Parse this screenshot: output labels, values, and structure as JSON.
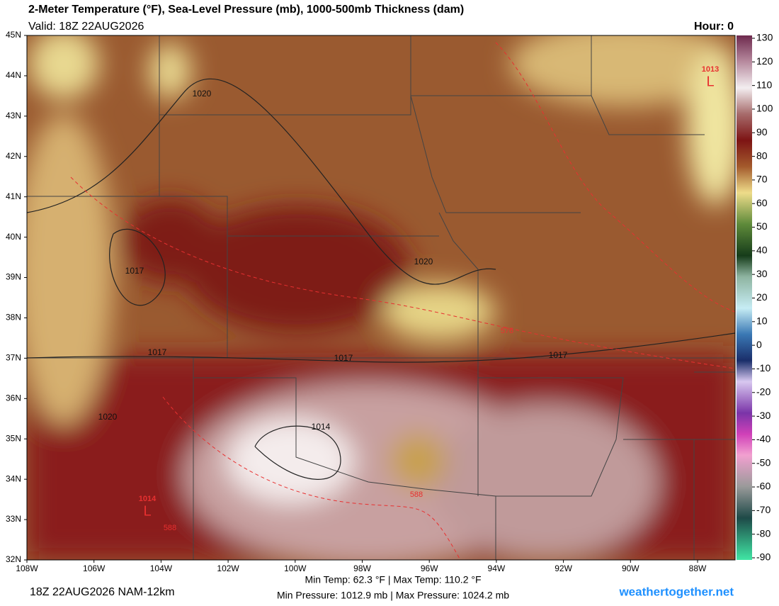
{
  "header": {
    "title": "2-Meter Temperature (°F), Sea-Level Pressure (mb), 1000-500mb Thickness (dam)",
    "valid": "Valid: 18Z 22AUG2026",
    "hour": "Hour: 0"
  },
  "map": {
    "lat_labels": [
      "45N",
      "44N",
      "43N",
      "42N",
      "41N",
      "40N",
      "39N",
      "38N",
      "37N",
      "36N",
      "35N",
      "34N",
      "33N",
      "32N"
    ],
    "lon_labels": [
      "108W",
      "106W",
      "104W",
      "102W",
      "100W",
      "98W",
      "96W",
      "94W",
      "92W",
      "90W",
      "88W"
    ],
    "pressure_labels": [
      "1020",
      "1017",
      "1017",
      "1020",
      "1017",
      "1020",
      "1017",
      "1014"
    ],
    "thickness_labels": [
      "576",
      "588",
      "588"
    ],
    "lows": [
      {
        "label": "L",
        "value": "1013"
      },
      {
        "label": "L",
        "value": "1014"
      }
    ]
  },
  "colorbar": {
    "ticks": [
      130,
      120,
      110,
      100,
      90,
      80,
      70,
      60,
      50,
      40,
      30,
      20,
      10,
      0,
      -10,
      -20,
      -30,
      -40,
      -50,
      -60,
      -70,
      -80,
      -90
    ]
  },
  "footer": {
    "run": "18Z 22AUG2026 NAM-12km",
    "temp_range": "Min Temp:  62.3 °F | Max Temp: 110.2 °F",
    "pressure_range": "Min Pressure: 1012.9 mb | Max Pressure: 1024.2 mb",
    "site": "weathertogether.net"
  }
}
